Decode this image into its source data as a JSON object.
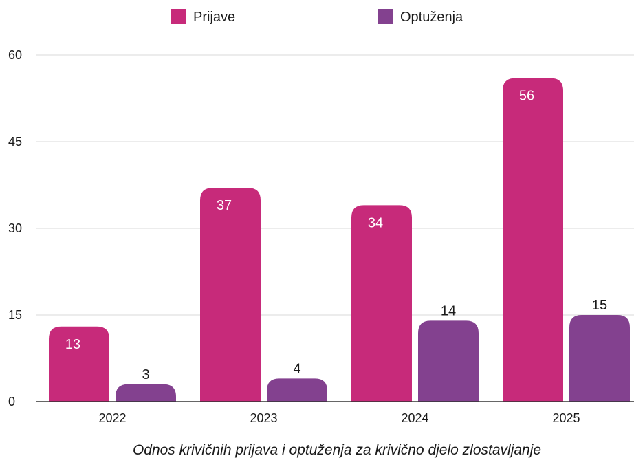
{
  "chart_data": {
    "type": "bar",
    "categories": [
      "2022",
      "2023",
      "2024",
      "2025"
    ],
    "series": [
      {
        "name": "Prijave",
        "values": [
          13,
          37,
          34,
          56
        ],
        "color": "#c72a7a",
        "label_color": "#ffffff"
      },
      {
        "name": "Optuženja",
        "values": [
          3,
          4,
          14,
          15
        ],
        "color": "#83418f",
        "label_color": "#1a1a1a"
      }
    ],
    "ylim": [
      0,
      60
    ],
    "yticks": [
      0,
      15,
      30,
      45,
      60
    ],
    "grid": true,
    "legend_position": "top-center",
    "caption": "Odnos krivičnih prijava i optuženja za krivično djelo zlostavljanje"
  }
}
